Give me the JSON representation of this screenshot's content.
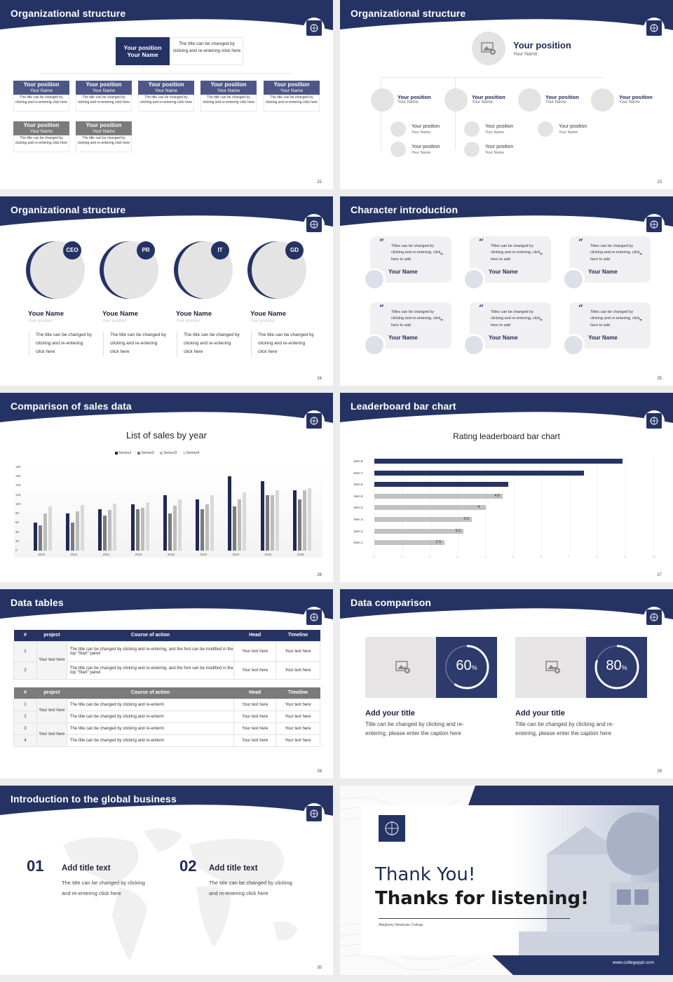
{
  "colors": {
    "navy": "#253364",
    "gray_bar": "#bdbdbd",
    "light_bg": "#e5e4e5"
  },
  "slides": {
    "s22": {
      "title": "Organizational structure",
      "page": "22",
      "top": {
        "position": "Your position",
        "name": "Your Name",
        "desc": "The title can be changed by clicking and re-entering click here"
      },
      "row1": [
        {
          "position": "Your position",
          "name": "Your Name",
          "desc": "The title can be changed by clicking and re-entering click here"
        },
        {
          "position": "Your position",
          "name": "Your Name",
          "desc": "The title can be changed by clicking and re-entering click here"
        },
        {
          "position": "Your position",
          "name": "Your Name",
          "desc": "The title can be changed by clicking and re-entering click here"
        },
        {
          "position": "Your position",
          "name": "Your Name",
          "desc": "The title can be changed by clicking and re-entering click here"
        },
        {
          "position": "Your position",
          "name": "Your Name",
          "desc": "The title can be changed by clicking and re-entering click here"
        }
      ],
      "row2": [
        {
          "position": "Your position",
          "name": "Your Name",
          "desc": "The title can be changed by clicking and re-entering click here"
        },
        {
          "position": "Your position",
          "name": "Your Name",
          "desc": "The title can be changed by clicking and re-entering click here"
        }
      ]
    },
    "s23": {
      "title": "Organizational structure",
      "page": "23",
      "top": {
        "position": "Your position",
        "name": "Your Name"
      },
      "level1": [
        {
          "position": "Your position",
          "name": "Your Name"
        },
        {
          "position": "Your position",
          "name": "Your Name"
        },
        {
          "position": "Your position",
          "name": "Your Name"
        },
        {
          "position": "Your position",
          "name": "Your Name"
        }
      ],
      "level2": [
        {
          "position": "Your position",
          "name": "Your Name"
        },
        {
          "position": "Your position",
          "name": "Your Name"
        },
        {
          "position": "Your position",
          "name": "Your Name"
        },
        {
          "position": "Your position",
          "name": "Your Name"
        },
        {
          "position": "Your position",
          "name": "Your Name"
        }
      ]
    },
    "s24": {
      "title": "Organizational structure",
      "page": "24",
      "people": [
        {
          "badge": "CEO",
          "name": "Youe Name",
          "position": "Your position",
          "desc": "The title can be changed by clicking and re-entering click here"
        },
        {
          "badge": "PR",
          "name": "Youe Name",
          "position": "Your position",
          "desc": "The title can be changed by clicking and re-entering click here"
        },
        {
          "badge": "IT",
          "name": "Youe Name",
          "position": "Your position",
          "desc": "The title can be changed by clicking and re-entering click here"
        },
        {
          "badge": "GD",
          "name": "Youe Name",
          "position": "Your position",
          "desc": "The title can be changed by clicking and re-entering click here"
        }
      ]
    },
    "s25": {
      "title": "Character introduction",
      "page": "25",
      "cards": [
        {
          "text": "Titles can be changed by clicking and re-entering, click here to add",
          "name": "Your Name"
        },
        {
          "text": "Titles can be changed by clicking and re-entering, click here to add",
          "name": "Your Name"
        },
        {
          "text": "Titles can be changed by clicking and re-entering, click here to add",
          "name": "Your Name"
        },
        {
          "text": "Titles can be changed by clicking and re-entering, click here to add",
          "name": "Your Name"
        },
        {
          "text": "Titles can be changed by clicking and re-entering, click here to add",
          "name": "Your Name"
        },
        {
          "text": "Titles can be changed by clicking and re-entering, click here to add",
          "name": "Your Name"
        }
      ]
    },
    "s26": {
      "title": "Comparison of sales data",
      "page": "26"
    },
    "s27": {
      "title": "Leaderboard bar chart",
      "page": "27"
    },
    "s28": {
      "title": "Data tables",
      "page": "28",
      "headers": [
        "#",
        "project",
        "Course of action",
        "Head",
        "Timeline"
      ],
      "table1": {
        "project": "Your text here",
        "rows": [
          {
            "num": "1",
            "action": "The title can be changed by clicking and re-entering, and the font can be modified in the top \"Start\" panel",
            "head": "Your text here",
            "timeline": "Your text here"
          },
          {
            "num": "2",
            "action": "The title can be changed by clicking and re-entering, and the font can be modified in the top \"Start\" panel",
            "head": "Your text here",
            "timeline": "Your text here"
          }
        ]
      },
      "table2": {
        "projects": [
          "Your text here",
          "Your text here"
        ],
        "rows": [
          {
            "num": "1",
            "action": "The title can be changed by clicking and re-enterin",
            "head": "Your text here",
            "timeline": "Your text here"
          },
          {
            "num": "2",
            "action": "The title can be changed by clicking and re-enterin",
            "head": "Your text here",
            "timeline": "Your text here"
          },
          {
            "num": "3",
            "action": "The title can be changed by clicking and re-enterin",
            "head": "Your text here",
            "timeline": "Your text here"
          },
          {
            "num": "4",
            "action": "The title can be changed by clicking and re-enterin",
            "head": "Your text here",
            "timeline": "Your text here"
          }
        ]
      }
    },
    "s29": {
      "title": "Data comparison",
      "page": "29",
      "items": [
        {
          "value": "60",
          "unit": "%",
          "percent": 60,
          "title": "Add your title",
          "desc": "Title can be changed by clicking and re-entering, please enter the caption here"
        },
        {
          "value": "80",
          "unit": "%",
          "percent": 80,
          "title": "Add your title",
          "desc": "Title can be changed by clicking and re-entering, please enter the caption here"
        }
      ]
    },
    "s30": {
      "title": "Introduction to the global business",
      "page": "30",
      "items": [
        {
          "num": "01",
          "title": "Add title text",
          "desc": "The title can be changed by clicking and re-entering click here"
        },
        {
          "num": "02",
          "title": "Add title text",
          "desc": "The title can be changed by clicking and re-entering click here"
        }
      ]
    },
    "s31": {
      "line1": "Thank You!",
      "line2": "Thanks for listening!",
      "college": "Allegheny Wesleyan College",
      "website": "www.collegeppt.com"
    }
  },
  "chart_data": [
    {
      "type": "bar",
      "title": "List of sales by year",
      "categories": [
        "2010",
        "2012",
        "2014",
        "2016",
        "2018",
        "2020",
        "2022",
        "2024",
        "2026"
      ],
      "series": [
        {
          "name": "Series1",
          "color": "#1e2a55",
          "values": [
            60,
            80,
            90,
            100,
            120,
            110,
            160,
            150,
            130
          ]
        },
        {
          "name": "Series2",
          "color": "#7b7b7b",
          "values": [
            55,
            60,
            75,
            90,
            80,
            90,
            95,
            120,
            110
          ]
        },
        {
          "name": "Series3",
          "color": "#bcbcbc",
          "values": [
            80,
            85,
            88,
            92,
            97,
            100,
            110,
            120,
            130
          ]
        },
        {
          "name": "Series4",
          "color": "#d9d9d9",
          "values": [
            95,
            98,
            102,
            105,
            110,
            120,
            126,
            130,
            135
          ]
        }
      ],
      "yticks": [
        "0",
        "20",
        "40",
        "60",
        "80",
        "100",
        "120",
        "140",
        "160",
        "180"
      ],
      "ylim": [
        0,
        180
      ],
      "xlabel": "",
      "ylabel": "",
      "grid": false,
      "legend_position": "top"
    },
    {
      "type": "bar",
      "orientation": "horizontal",
      "title": "Rating leaderboard bar chart",
      "categories": [
        "Item 8",
        "Item 7",
        "Item 6",
        "Item 5",
        "Item 4",
        "Item 3",
        "Item 2",
        "Item 1"
      ],
      "values": [
        8.9,
        7.5,
        4.8,
        4.6,
        4,
        3.5,
        3.2,
        2.5
      ],
      "labels": [
        "",
        "",
        "",
        "4.6",
        "4",
        "3.5",
        "3.2",
        "2.5"
      ],
      "highlight": [
        true,
        true,
        true,
        false,
        false,
        false,
        false,
        false
      ],
      "xticks": [
        "0",
        "1",
        "2",
        "3",
        "4",
        "5",
        "6",
        "7",
        "8",
        "9",
        "10"
      ],
      "xlim": [
        0,
        10
      ],
      "grid": true
    }
  ]
}
